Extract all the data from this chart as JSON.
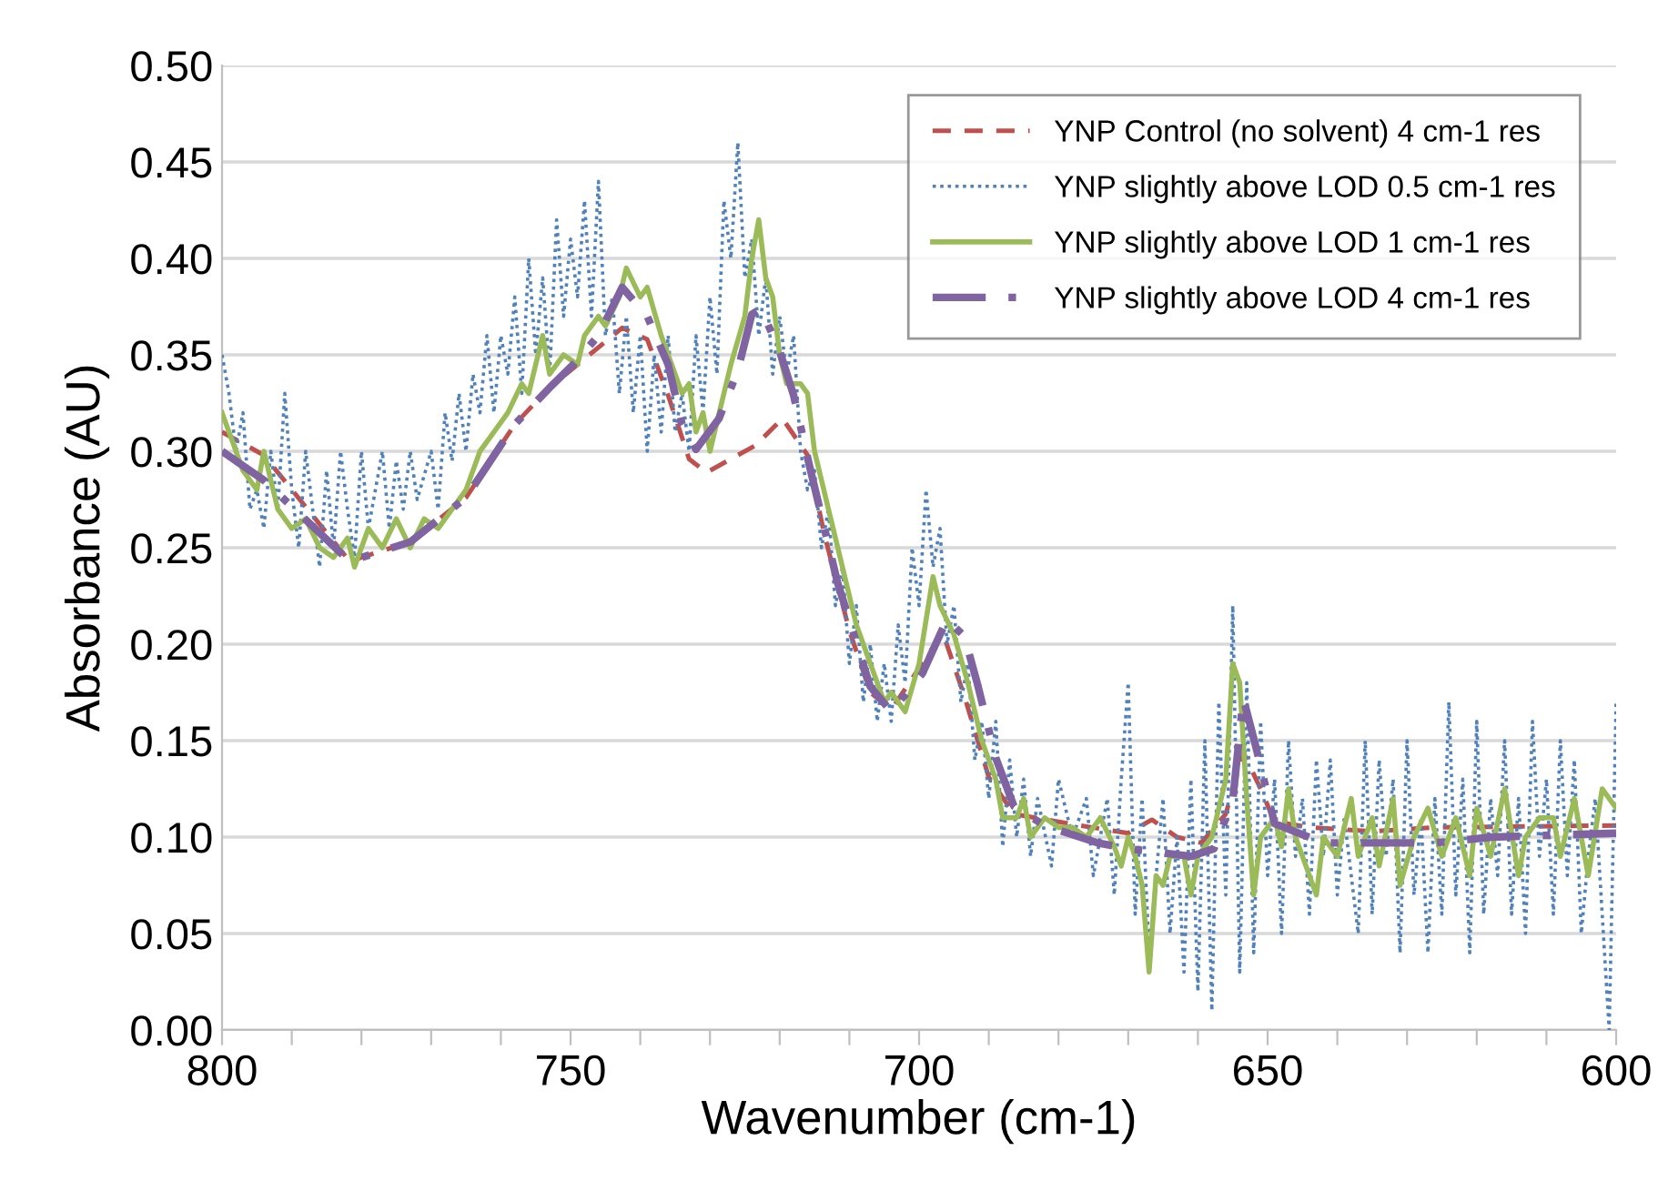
{
  "chart_data": {
    "type": "line",
    "xlabel": "Wavenumber (cm-1)",
    "ylabel": "Absorbance (AU)",
    "xlim": [
      800,
      600
    ],
    "xticks": [
      800,
      {
        "value": 790,
        "label": null
      },
      {
        "value": 780,
        "label": null
      },
      {
        "value": 770,
        "label": null
      },
      {
        "value": 760,
        "label": null
      },
      750,
      {
        "value": 740,
        "label": null
      },
      {
        "value": 730,
        "label": null
      },
      {
        "value": 720,
        "label": null
      },
      {
        "value": 710,
        "label": null
      },
      700,
      {
        "value": 690,
        "label": null
      },
      {
        "value": 680,
        "label": null
      },
      {
        "value": 670,
        "label": null
      },
      {
        "value": 660,
        "label": null
      },
      650,
      {
        "value": 640,
        "label": null
      },
      {
        "value": 630,
        "label": null
      },
      {
        "value": 620,
        "label": null
      },
      {
        "value": 610,
        "label": null
      },
      600
    ],
    "ylim": [
      0,
      0.5
    ],
    "yticks": [
      {
        "value": 0,
        "label": "0.00"
      },
      {
        "value": 0.05,
        "label": "0.05"
      },
      {
        "value": 0.1,
        "label": "0.10"
      },
      {
        "value": 0.15,
        "label": "0.15"
      },
      {
        "value": 0.2,
        "label": "0.20"
      },
      {
        "value": 0.25,
        "label": "0.25"
      },
      {
        "value": 0.3,
        "label": "0.30"
      },
      {
        "value": 0.35,
        "label": "0.35"
      },
      {
        "value": 0.4,
        "label": "0.40"
      },
      {
        "value": 0.45,
        "label": "0.45"
      },
      {
        "value": 0.5,
        "label": "0.50"
      }
    ],
    "grid": "y",
    "legend": "top right",
    "marker": "none",
    "series": [
      {
        "name": "YNP Control (no solvent) 4 cm-1 res",
        "color": "#c0504d",
        "line_style": "dashed",
        "x": [
          800,
          794,
          781.7,
          773,
          765,
          758,
          753,
          742.6,
          739,
          736,
          733,
          730.5,
          723.5,
          719.6,
          716,
          713.6,
          710,
          707,
          704,
          696.6,
          693.5,
          690,
          686.4,
          678.6,
          670,
          666.6,
          663,
          659.5,
          656,
          653.5,
          651,
          649,
          643.9,
          635,
          626,
          600
        ],
        "values": [
          0.31,
          0.298,
          0.243,
          0.253,
          0.276,
          0.314,
          0.333,
          0.364,
          0.358,
          0.329,
          0.296,
          0.289,
          0.303,
          0.317,
          0.298,
          0.257,
          0.207,
          0.175,
          0.166,
          0.206,
          0.173,
          0.131,
          0.112,
          0.107,
          0.102,
          0.109,
          0.1,
          0.097,
          0.112,
          0.144,
          0.125,
          0.108,
          0.105,
          0.103,
          0.105,
          0.106
        ]
      },
      {
        "name": "YNP slightly above LOD 0.5 cm-1 res",
        "color": "#4f81bd",
        "line_style": "dotted",
        "x": [
          800,
          799,
          798,
          797,
          796,
          795,
          794,
          793,
          792,
          791,
          790,
          789,
          788,
          787,
          786,
          785,
          784,
          783,
          782,
          781,
          780,
          779,
          778,
          777,
          776,
          775,
          774,
          773,
          772,
          770,
          769,
          768,
          767,
          766,
          765,
          764,
          763,
          762,
          761,
          760,
          759,
          758,
          757,
          756,
          755,
          754,
          753,
          752,
          751,
          750,
          749,
          748,
          747,
          746,
          745,
          744,
          743,
          742,
          741,
          740,
          739,
          738,
          737,
          736,
          735,
          734,
          733,
          732,
          731,
          730,
          729,
          728,
          727,
          726,
          725,
          724,
          723,
          722,
          721,
          720,
          719,
          718,
          717,
          716,
          715,
          714,
          713,
          712,
          711,
          710,
          709,
          708,
          707,
          706,
          705,
          704,
          703,
          702,
          701,
          700,
          699,
          698,
          697,
          696,
          695,
          694,
          693,
          692,
          691,
          690,
          689,
          688,
          687,
          686,
          685,
          684,
          683,
          681,
          680,
          678,
          676,
          675,
          673,
          672,
          671,
          670,
          669,
          668,
          667,
          666,
          665,
          664,
          663,
          662,
          661,
          660,
          659,
          658,
          657,
          656,
          655,
          654,
          653,
          652,
          651,
          650,
          649,
          648,
          647,
          646,
          645,
          644,
          643,
          642,
          641,
          640,
          639,
          637,
          636,
          635,
          634,
          633,
          632,
          631,
          630,
          629,
          628,
          627,
          626,
          625,
          624,
          623,
          622,
          621,
          620,
          619,
          618,
          617,
          616,
          615,
          614,
          613,
          612,
          611,
          610,
          609,
          608,
          607,
          606,
          605,
          604,
          603,
          602,
          601,
          600
        ],
        "values": [
          0.35,
          0.33,
          0.3,
          0.32,
          0.27,
          0.28,
          0.26,
          0.3,
          0.27,
          0.33,
          0.28,
          0.25,
          0.3,
          0.27,
          0.24,
          0.29,
          0.25,
          0.3,
          0.27,
          0.245,
          0.3,
          0.26,
          0.28,
          0.3,
          0.26,
          0.295,
          0.27,
          0.3,
          0.275,
          0.3,
          0.27,
          0.32,
          0.295,
          0.33,
          0.3,
          0.34,
          0.32,
          0.36,
          0.32,
          0.36,
          0.34,
          0.38,
          0.33,
          0.4,
          0.35,
          0.39,
          0.34,
          0.42,
          0.37,
          0.41,
          0.38,
          0.43,
          0.37,
          0.44,
          0.36,
          0.38,
          0.33,
          0.37,
          0.32,
          0.36,
          0.3,
          0.35,
          0.31,
          0.36,
          0.31,
          0.33,
          0.3,
          0.36,
          0.32,
          0.38,
          0.34,
          0.43,
          0.4,
          0.46,
          0.39,
          0.41,
          0.36,
          0.39,
          0.34,
          0.37,
          0.34,
          0.36,
          0.3,
          0.28,
          0.29,
          0.25,
          0.27,
          0.22,
          0.24,
          0.19,
          0.22,
          0.17,
          0.2,
          0.16,
          0.19,
          0.16,
          0.21,
          0.18,
          0.25,
          0.22,
          0.28,
          0.24,
          0.26,
          0.2,
          0.22,
          0.17,
          0.19,
          0.14,
          0.16,
          0.12,
          0.16,
          0.095,
          0.14,
          0.1,
          0.13,
          0.09,
          0.12,
          0.085,
          0.13,
          0.1,
          0.12,
          0.08,
          0.12,
          0.07,
          0.13,
          0.18,
          0.06,
          0.12,
          0.04,
          0.08,
          0.12,
          0.05,
          0.1,
          0.03,
          0.13,
          0.02,
          0.15,
          0.01,
          0.17,
          0.07,
          0.22,
          0.03,
          0.18,
          0.04,
          0.16,
          0.08,
          0.13,
          0.05,
          0.15,
          0.09,
          0.12,
          0.06,
          0.14,
          0.09,
          0.14,
          0.07,
          0.11,
          0.05,
          0.15,
          0.06,
          0.14,
          0.09,
          0.13,
          0.04,
          0.15,
          0.07,
          0.11,
          0.04,
          0.12,
          0.06,
          0.17,
          0.07,
          0.13,
          0.04,
          0.16,
          0.06,
          0.12,
          0.08,
          0.15,
          0.06,
          0.12,
          0.05,
          0.16,
          0.09,
          0.13,
          0.06,
          0.15,
          0.08,
          0.14,
          0.05,
          0.09,
          0.12,
          0.06,
          0.0,
          0.17
        ]
      },
      {
        "name": "YNP slightly above LOD 1 cm-1 res",
        "color": "#9bbb59",
        "line_style": "solid",
        "x": [
          800,
          797,
          795,
          794,
          792,
          790,
          788,
          786,
          784,
          782,
          781,
          779,
          777,
          775,
          773,
          771,
          769,
          767,
          765,
          763,
          761,
          759,
          757,
          756,
          754,
          753,
          751,
          749,
          748,
          746,
          745,
          743,
          742,
          740,
          739,
          737,
          736,
          734,
          733,
          732,
          731,
          730,
          728,
          727,
          725,
          724,
          723,
          722,
          721,
          720,
          719,
          717,
          716,
          715,
          713,
          711,
          709,
          707,
          705,
          704,
          702,
          700,
          698,
          697,
          695,
          693,
          691,
          689,
          688,
          686,
          685,
          684,
          682,
          680,
          678,
          676,
          674,
          672,
          671,
          670,
          669,
          668,
          667,
          666,
          665,
          664,
          662,
          661,
          660,
          658,
          656,
          655,
          654,
          653,
          652,
          651,
          649,
          648,
          647,
          646,
          644,
          643,
          642,
          640,
          638,
          637,
          635,
          634,
          632,
          631,
          629,
          627,
          625,
          623,
          621,
          620,
          618,
          616,
          614,
          613,
          611,
          609,
          608,
          606,
          604,
          602,
          600
        ],
        "values": [
          0.32,
          0.29,
          0.28,
          0.3,
          0.27,
          0.26,
          0.265,
          0.25,
          0.245,
          0.255,
          0.24,
          0.26,
          0.25,
          0.265,
          0.25,
          0.265,
          0.26,
          0.27,
          0.28,
          0.3,
          0.31,
          0.32,
          0.335,
          0.33,
          0.36,
          0.34,
          0.35,
          0.345,
          0.36,
          0.37,
          0.365,
          0.38,
          0.395,
          0.38,
          0.385,
          0.36,
          0.35,
          0.33,
          0.335,
          0.31,
          0.32,
          0.3,
          0.33,
          0.345,
          0.37,
          0.4,
          0.42,
          0.39,
          0.38,
          0.35,
          0.335,
          0.335,
          0.33,
          0.3,
          0.27,
          0.24,
          0.21,
          0.19,
          0.17,
          0.175,
          0.165,
          0.19,
          0.235,
          0.22,
          0.205,
          0.18,
          0.15,
          0.13,
          0.11,
          0.11,
          0.12,
          0.1,
          0.11,
          0.105,
          0.105,
          0.1,
          0.11,
          0.095,
          0.085,
          0.1,
          0.09,
          0.075,
          0.03,
          0.08,
          0.075,
          0.09,
          0.09,
          0.07,
          0.09,
          0.1,
          0.13,
          0.19,
          0.18,
          0.12,
          0.07,
          0.1,
          0.11,
          0.095,
          0.125,
          0.1,
          0.08,
          0.07,
          0.1,
          0.09,
          0.12,
          0.09,
          0.11,
          0.085,
          0.12,
          0.075,
          0.1,
          0.115,
          0.09,
          0.11,
          0.08,
          0.115,
          0.09,
          0.125,
          0.08,
          0.1,
          0.11,
          0.11,
          0.09,
          0.12,
          0.08,
          0.125,
          0.115
        ]
      },
      {
        "name": "YNP slightly above LOD 4 cm-1 res",
        "color": "#8064a2",
        "line_style": "dashdot",
        "x": [
          800,
          794,
          781.7,
          773,
          765,
          758,
          753,
          749.6,
          746,
          742.6,
          739,
          736,
          734,
          732,
          728.7,
          726,
          724,
          722.7,
          720,
          718,
          715.7,
          711.7,
          707,
          704,
          699.5,
          696,
          693.5,
          691.6,
          689,
          686.4,
          682,
          674.4,
          670,
          661,
          657.7,
          655,
          653.5,
          651.7,
          649,
          642,
          626,
          617.8,
          600
        ],
        "values": [
          0.3,
          0.285,
          0.243,
          0.253,
          0.276,
          0.314,
          0.333,
          0.345,
          0.36,
          0.385,
          0.37,
          0.345,
          0.314,
          0.301,
          0.317,
          0.342,
          0.371,
          0.374,
          0.352,
          0.329,
          0.292,
          0.232,
          0.178,
          0.165,
          0.185,
          0.213,
          0.204,
          0.179,
          0.141,
          0.116,
          0.106,
          0.097,
          0.094,
          0.09,
          0.094,
          0.119,
          0.172,
          0.147,
          0.107,
          0.097,
          0.097,
          0.1,
          0.102
        ]
      }
    ]
  }
}
